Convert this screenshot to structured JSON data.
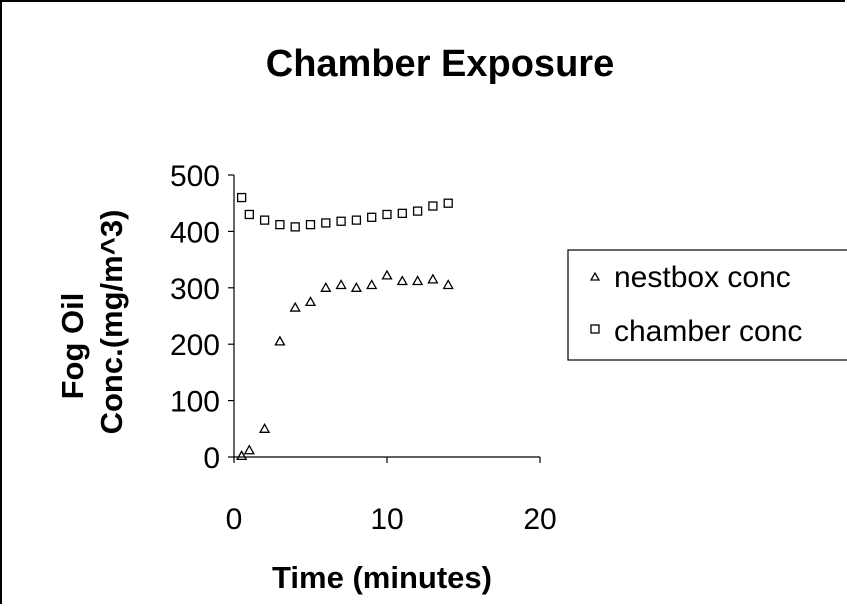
{
  "chart_data": {
    "type": "scatter",
    "title": "Chamber Exposure",
    "xlabel": "Time (minutes)",
    "ylabel_lines": [
      "Fog Oil",
      "Conc.(mg/m^3)"
    ],
    "xlim": [
      0,
      20
    ],
    "ylim": [
      0,
      500
    ],
    "xticks": [
      0,
      10,
      20
    ],
    "yticks": [
      0,
      100,
      200,
      300,
      400,
      500
    ],
    "grid": false,
    "legend_position": "right",
    "series": [
      {
        "name": "nestbox conc",
        "marker": "triangle",
        "x": [
          0.5,
          1,
          2,
          3,
          4,
          5,
          6,
          7,
          8,
          9,
          10,
          11,
          12,
          13,
          14
        ],
        "y": [
          2,
          12,
          50,
          205,
          265,
          275,
          300,
          305,
          300,
          305,
          322,
          312,
          312,
          315,
          305
        ]
      },
      {
        "name": "chamber conc",
        "marker": "square",
        "x": [
          0.5,
          1,
          2,
          3,
          4,
          5,
          6,
          7,
          8,
          9,
          10,
          11,
          12,
          13,
          14
        ],
        "y": [
          460,
          430,
          420,
          412,
          408,
          412,
          415,
          418,
          420,
          425,
          430,
          432,
          436,
          445,
          450
        ]
      }
    ]
  }
}
